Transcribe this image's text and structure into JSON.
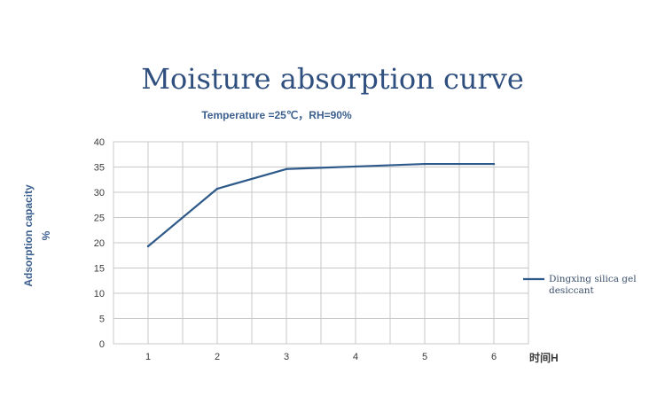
{
  "chart_data": {
    "type": "line",
    "title": "Moisture absorption curve",
    "subtitle": "Temperature =25℃，RH=90%",
    "ylabel_line1": "Adsorption capacity",
    "ylabel_line2": "%",
    "xlabel": "时间H",
    "x": [
      1,
      2,
      3,
      4,
      5,
      6
    ],
    "xlim": [
      0.5,
      6.5
    ],
    "ylim": [
      0,
      40
    ],
    "yticks": [
      0,
      5,
      10,
      15,
      20,
      25,
      30,
      35,
      40
    ],
    "xticks": [
      1,
      2,
      3,
      4,
      5,
      6
    ],
    "grid": true,
    "legend_position": "right",
    "series": [
      {
        "name_line1": "Dingxing  silica gel",
        "name_line2": "desiccant",
        "values": [
          19.3,
          30.7,
          34.6,
          35.1,
          35.6,
          35.6
        ],
        "color": "#2e5a8a"
      }
    ]
  }
}
